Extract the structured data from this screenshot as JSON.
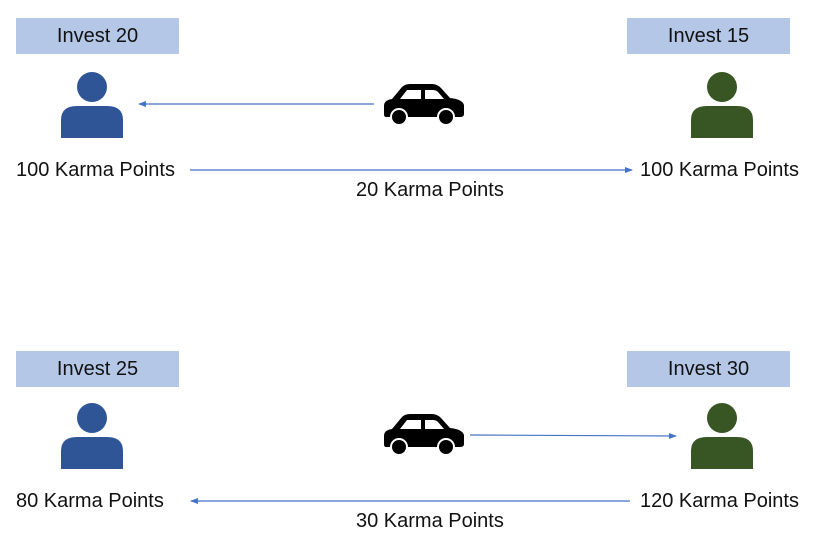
{
  "colors": {
    "box_fill": "#b4c7e7",
    "person_left": "#2f5597",
    "person_right": "#375623",
    "arrow": "#4472c4",
    "car": "#000000"
  },
  "scenario_top": {
    "left_invest": "Invest 20",
    "right_invest": "Invest 15",
    "left_points": "100 Karma Points",
    "right_points": "100 Karma Points",
    "transfer": "20 Karma Points"
  },
  "scenario_bottom": {
    "left_invest": "Invest 25",
    "right_invest": "Invest 30",
    "left_points": "80 Karma Points",
    "right_points": "120 Karma Points",
    "transfer": "30 Karma Points"
  }
}
